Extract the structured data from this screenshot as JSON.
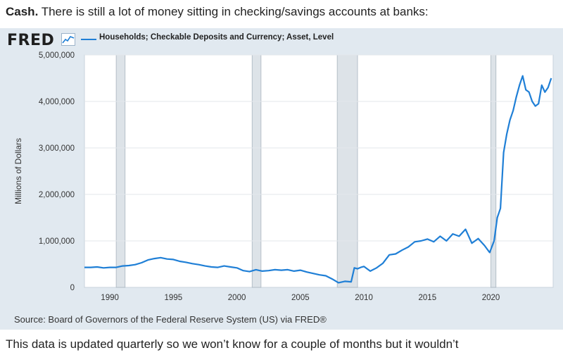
{
  "intro": {
    "lead": "Cash.",
    "text": " There is still a lot of money sitting in checking/savings accounts at banks:"
  },
  "outro": {
    "text": "This data is updated quarterly so we won’t know for a couple of months but it wouldn’t"
  },
  "branding": {
    "logo": "FRED",
    "logo_icon": "line-chart-icon"
  },
  "source": "Source: Board of Governors of the Federal Reserve System (US) via FRED®",
  "colors": {
    "series": "#1f7fd6",
    "recession": "#dde3e8",
    "background": "#e1e9f0"
  },
  "chart_data": {
    "type": "line",
    "title": "",
    "xlabel": "",
    "ylabel": "Millions of Dollars",
    "xlim": [
      1988,
      2024.9
    ],
    "ylim": [
      0,
      5000000
    ],
    "grid": true,
    "legend_position": "top-left",
    "x_tick_labels": [
      "1990",
      "1995",
      "2000",
      "2005",
      "2010",
      "2015",
      "2020"
    ],
    "x_tick_values": [
      1990,
      1995,
      2000,
      2005,
      2010,
      2015,
      2020
    ],
    "y_tick_labels": [
      "0",
      "1,000,000",
      "2,000,000",
      "3,000,000",
      "4,000,000",
      "5,000,000"
    ],
    "y_tick_values": [
      0,
      1000000,
      2000000,
      3000000,
      4000000,
      5000000
    ],
    "recessions": [
      [
        1990.5,
        1991.2
      ],
      [
        2001.2,
        2001.9
      ],
      [
        2007.9,
        2009.5
      ],
      [
        2020.0,
        2020.4
      ]
    ],
    "series": [
      {
        "name": "Households; Checkable Deposits and Currency; Asset, Level",
        "x": [
          1988.0,
          1988.5,
          1989.0,
          1989.5,
          1990.0,
          1990.5,
          1991.0,
          1991.5,
          1992.0,
          1992.5,
          1993.0,
          1993.5,
          1994.0,
          1994.5,
          1995.0,
          1995.5,
          1996.0,
          1996.5,
          1997.0,
          1997.5,
          1998.0,
          1998.5,
          1999.0,
          1999.5,
          2000.0,
          2000.5,
          2001.0,
          2001.5,
          2002.0,
          2002.5,
          2003.0,
          2003.5,
          2004.0,
          2004.5,
          2005.0,
          2005.5,
          2006.0,
          2006.5,
          2007.0,
          2007.5,
          2008.0,
          2008.5,
          2009.0,
          2009.25,
          2009.5,
          2009.75,
          2010.0,
          2010.5,
          2011.0,
          2011.5,
          2012.0,
          2012.5,
          2013.0,
          2013.5,
          2014.0,
          2014.5,
          2015.0,
          2015.5,
          2016.0,
          2016.5,
          2017.0,
          2017.5,
          2018.0,
          2018.5,
          2019.0,
          2019.5,
          2019.9,
          2020.25,
          2020.5,
          2020.75,
          2021.0,
          2021.25,
          2021.5,
          2021.75,
          2022.0,
          2022.25,
          2022.5,
          2022.75,
          2023.0,
          2023.25,
          2023.5,
          2023.75,
          2024.0,
          2024.25,
          2024.5,
          2024.75
        ],
        "values": [
          430000,
          430000,
          440000,
          420000,
          430000,
          430000,
          460000,
          470000,
          490000,
          530000,
          590000,
          620000,
          640000,
          610000,
          600000,
          560000,
          540000,
          510000,
          490000,
          460000,
          440000,
          430000,
          460000,
          440000,
          420000,
          360000,
          340000,
          380000,
          350000,
          360000,
          380000,
          370000,
          380000,
          350000,
          370000,
          330000,
          300000,
          270000,
          250000,
          180000,
          100000,
          130000,
          120000,
          420000,
          400000,
          430000,
          450000,
          350000,
          420000,
          520000,
          700000,
          720000,
          800000,
          870000,
          980000,
          1000000,
          1040000,
          980000,
          1100000,
          1000000,
          1150000,
          1100000,
          1250000,
          950000,
          1050000,
          900000,
          750000,
          1000000,
          1500000,
          1700000,
          2900000,
          3300000,
          3600000,
          3800000,
          4100000,
          4350000,
          4550000,
          4250000,
          4200000,
          4000000,
          3900000,
          3950000,
          4350000,
          4200000,
          4300000,
          4500000
        ]
      }
    ]
  }
}
